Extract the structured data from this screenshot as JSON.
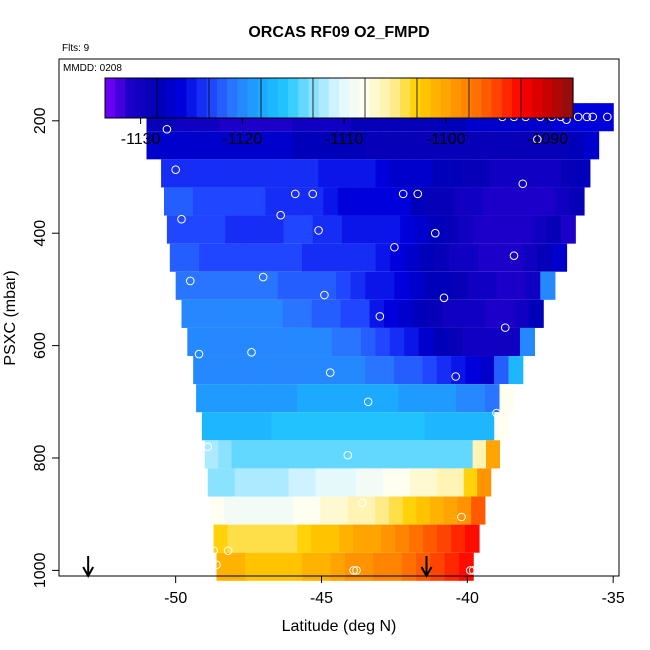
{
  "chart_data": {
    "type": "heatmap",
    "title": "ORCAS RF09 O2_FMPD",
    "note_flts": "Flts: 9",
    "note_mmdd": "MMDD: 0208",
    "xlabel": "Latitude (deg N)",
    "ylabel": "PSXC (mbar)",
    "xlim": [
      -54,
      -34.8
    ],
    "ylim": [
      1010,
      90
    ],
    "x_ticks": [
      -50,
      -45,
      -40,
      -35
    ],
    "x_tick_labels": [
      "-50",
      "-45",
      "-40",
      "-35"
    ],
    "y_ticks": [
      200,
      400,
      600,
      800,
      1000
    ],
    "y_tick_labels": [
      "200",
      "400",
      "600",
      "800",
      "1000"
    ],
    "colorbar": {
      "range": [
        -1133.5,
        -1087.5
      ],
      "ticks": [
        -1130,
        -1120,
        -1110,
        -1100,
        -1090
      ],
      "tick_labels": [
        "-1130",
        "-1120",
        "-1110",
        "-1100",
        "-1090"
      ],
      "palette": [
        "#7b00ff",
        "#1a00c8",
        "#0000b4",
        "#0000e0",
        "#1f3fff",
        "#2a7cff",
        "#1aa8ff",
        "#22c8ff",
        "#88e2ff",
        "#dff6ff",
        "#fffff0",
        "#fff0a0",
        "#ffd000",
        "#ffa800",
        "#ff8000",
        "#ff4800",
        "#ff0000",
        "#c80000",
        "#8b1010"
      ]
    },
    "bands": [
      {
        "p": 190,
        "x0": -51.0,
        "x1": -35.0,
        "v": [
          -1129,
          -1129,
          -1130,
          -1130,
          -1130,
          -1131,
          -1131,
          -1131,
          -1131,
          -1131,
          -1130,
          -1130,
          -1130,
          -1130,
          -1129,
          -1129,
          -1129,
          -1129,
          -1129,
          -1129,
          -1128,
          -1128,
          -1127,
          -1127,
          -1127,
          -1127,
          -1127,
          -1127,
          -1126,
          -1126,
          -1126,
          -1126
        ]
      },
      {
        "p": 240,
        "x0": -51.0,
        "x1": -35.5,
        "v": [
          -1127,
          -1127,
          -1127,
          -1127,
          -1127,
          -1127,
          -1127,
          -1127,
          -1127,
          -1127,
          -1128,
          -1128,
          -1128,
          -1128,
          -1128,
          -1129,
          -1129,
          -1129,
          -1129,
          -1129,
          -1129,
          -1129,
          -1129,
          -1129,
          -1129,
          -1129,
          -1129,
          -1129,
          -1129,
          -1128,
          -1127
        ]
      },
      {
        "p": 290,
        "x0": -50.5,
        "x1": -35.8,
        "v": [
          -1124,
          -1124,
          -1124,
          -1124,
          -1124,
          -1124,
          -1124,
          -1124,
          -1124,
          -1124,
          -1124,
          -1125,
          -1125,
          -1125,
          -1125,
          -1126,
          -1127,
          -1127,
          -1127,
          -1128,
          -1128,
          -1129,
          -1129,
          -1130,
          -1130,
          -1130,
          -1130,
          -1130,
          -1129,
          -1128
        ]
      },
      {
        "p": 340,
        "x0": -50.4,
        "x1": -36.0,
        "v": [
          -1122,
          -1122,
          -1123,
          -1123,
          -1123,
          -1123,
          -1123,
          -1124,
          -1124,
          -1124,
          -1124,
          -1125,
          -1126,
          -1126,
          -1126,
          -1126,
          -1126,
          -1128,
          -1129,
          -1129,
          -1130,
          -1130,
          -1131,
          -1131,
          -1131,
          -1131,
          -1131,
          -1130,
          -1129
        ]
      },
      {
        "p": 390,
        "x0": -50.3,
        "x1": -36.3,
        "v": [
          -1123,
          -1123,
          -1123,
          -1123,
          -1124,
          -1124,
          -1124,
          -1124,
          -1123,
          -1123,
          -1124,
          -1124,
          -1125,
          -1125,
          -1125,
          -1125,
          -1126,
          -1127,
          -1128,
          -1129,
          -1130,
          -1131,
          -1131,
          -1131,
          -1131,
          -1130,
          -1129,
          -1131
        ]
      },
      {
        "p": 440,
        "x0": -50.2,
        "x1": -36.6,
        "v": [
          -1122,
          -1122,
          -1123,
          -1123,
          -1123,
          -1123,
          -1123,
          -1123,
          -1123,
          -1124,
          -1124,
          -1124,
          -1124,
          -1124,
          -1125,
          -1126,
          -1127,
          -1128,
          -1129,
          -1130,
          -1130,
          -1131,
          -1131,
          -1131,
          -1130,
          -1129,
          -1127
        ]
      },
      {
        "p": 490,
        "x0": -50.0,
        "x1": -37.0,
        "v": [
          -1121,
          -1121,
          -1121,
          -1121,
          -1121,
          -1121,
          -1121,
          -1122,
          -1122,
          -1122,
          -1122,
          -1123,
          -1124,
          -1125,
          -1125,
          -1126,
          -1127,
          -1128,
          -1128,
          -1129,
          -1130,
          -1130,
          -1131,
          -1131,
          -1130,
          -1120
        ]
      },
      {
        "p": 540,
        "x0": -49.8,
        "x1": -37.4,
        "v": [
          -1120,
          -1120,
          -1120,
          -1120,
          -1120,
          -1120,
          -1120,
          -1121,
          -1121,
          -1122,
          -1122,
          -1123,
          -1123,
          -1125,
          -1126,
          -1127,
          -1128,
          -1129,
          -1130,
          -1130,
          -1130,
          -1131,
          -1131,
          -1130,
          -1128
        ]
      },
      {
        "p": 590,
        "x0": -49.6,
        "x1": -37.7,
        "v": [
          -1120,
          -1120,
          -1120,
          -1120,
          -1120,
          -1120,
          -1120,
          -1120,
          -1120,
          -1120,
          -1121,
          -1121,
          -1122,
          -1123,
          -1124,
          -1125,
          -1127,
          -1128,
          -1129,
          -1130,
          -1130,
          -1130,
          -1130,
          -1120
        ]
      },
      {
        "p": 640,
        "x0": -49.4,
        "x1": -38.1,
        "v": [
          -1120,
          -1120,
          -1120,
          -1120,
          -1120,
          -1120,
          -1120,
          -1120,
          -1120,
          -1120,
          -1120,
          -1120,
          -1121,
          -1121,
          -1122,
          -1122,
          -1123,
          -1124,
          -1125,
          -1126,
          -1127,
          -1122,
          -1117
        ]
      },
      {
        "p": 690,
        "x0": -49.3,
        "x1": -38.4,
        "v": [
          -1119,
          -1119,
          -1119,
          -1119,
          -1119,
          -1119,
          -1119,
          -1118,
          -1118,
          -1118,
          -1118,
          -1118,
          -1118,
          -1118,
          -1119,
          -1119,
          -1119,
          -1119,
          -1120,
          -1120,
          -1121,
          -1108
        ]
      },
      {
        "p": 740,
        "x0": -49.1,
        "x1": -38.6,
        "v": [
          -1117,
          -1117,
          -1117,
          -1117,
          -1117,
          -1116,
          -1116,
          -1116,
          -1116,
          -1116,
          -1116,
          -1116,
          -1116,
          -1116,
          -1116,
          -1116,
          -1117,
          -1117,
          -1117,
          -1117,
          -1117,
          -1108
        ]
      },
      {
        "p": 790,
        "x0": -49.0,
        "x1": -38.9,
        "v": [
          -1112,
          -1113,
          -1114,
          -1114,
          -1114,
          -1114,
          -1114,
          -1114,
          -1114,
          -1114,
          -1114,
          -1114,
          -1114,
          -1114,
          -1114,
          -1114,
          -1114,
          -1114,
          -1114,
          -1114,
          -1106,
          -1100
        ]
      },
      {
        "p": 840,
        "x0": -48.9,
        "x1": -39.2,
        "v": [
          -1113,
          -1113,
          -1112,
          -1112,
          -1112,
          -1112,
          -1111,
          -1111,
          -1110,
          -1110,
          -1110,
          -1109,
          -1109,
          -1108,
          -1108,
          -1107,
          -1107,
          -1106,
          -1106,
          -1103,
          -1099
        ]
      },
      {
        "p": 890,
        "x0": -48.8,
        "x1": -39.4,
        "v": [
          -1108,
          -1109,
          -1109,
          -1109,
          -1109,
          -1109,
          -1108,
          -1108,
          -1107,
          -1107,
          -1106,
          -1106,
          -1105,
          -1104,
          -1103,
          -1102,
          -1101,
          -1100,
          -1099,
          -1096
        ]
      },
      {
        "p": 940,
        "x0": -48.7,
        "x1": -39.6,
        "v": [
          -1103,
          -1104,
          -1104,
          -1104,
          -1104,
          -1104,
          -1103,
          -1102,
          -1102,
          -1101,
          -1100,
          -1100,
          -1099,
          -1098,
          -1097,
          -1096,
          -1095,
          -1094,
          -1093
        ]
      },
      {
        "p": 990,
        "x0": -48.6,
        "x1": -39.8,
        "v": [
          -1101,
          -1101,
          -1102,
          -1102,
          -1102,
          -1102,
          -1101,
          -1101,
          -1100,
          -1099,
          -1099,
          -1098,
          -1098,
          -1097,
          -1096,
          -1095,
          -1094,
          -1093
        ]
      }
    ],
    "points": [
      [
        -50.8,
        188
      ],
      [
        -50.3,
        215
      ],
      [
        -50.0,
        287
      ],
      [
        -49.8,
        375
      ],
      [
        -49.5,
        485
      ],
      [
        -49.2,
        615
      ],
      [
        -48.9,
        780
      ],
      [
        -48.7,
        965
      ],
      [
        -48.6,
        990
      ],
      [
        -48.2,
        965
      ],
      [
        -47.4,
        612
      ],
      [
        -47.0,
        478
      ],
      [
        -46.4,
        368
      ],
      [
        -45.9,
        330
      ],
      [
        -45.3,
        330
      ],
      [
        -45.1,
        395
      ],
      [
        -44.9,
        510
      ],
      [
        -44.7,
        648
      ],
      [
        -44.1,
        795
      ],
      [
        -43.9,
        1000
      ],
      [
        -43.8,
        1000
      ],
      [
        -43.6,
        880
      ],
      [
        -43.4,
        700
      ],
      [
        -43.0,
        548
      ],
      [
        -42.5,
        425
      ],
      [
        -42.2,
        330
      ],
      [
        -41.7,
        330
      ],
      [
        -41.1,
        400
      ],
      [
        -40.8,
        515
      ],
      [
        -40.4,
        655
      ],
      [
        -40.2,
        905
      ],
      [
        -39.9,
        1000
      ],
      [
        -39.8,
        1000
      ],
      [
        -39.0,
        720
      ],
      [
        -38.7,
        568
      ],
      [
        -38.4,
        440
      ],
      [
        -38.1,
        312
      ],
      [
        -37.6,
        233
      ],
      [
        -37.1,
        193
      ],
      [
        -36.8,
        193
      ],
      [
        -36.6,
        198
      ],
      [
        -36.2,
        193
      ],
      [
        -35.9,
        193
      ],
      [
        -35.7,
        193
      ],
      [
        -35.2,
        193
      ],
      [
        -38.8,
        193
      ],
      [
        -38.4,
        193
      ],
      [
        -38.0,
        193
      ],
      [
        -37.5,
        193
      ]
    ],
    "arrows": [
      {
        "x": -53.0
      },
      {
        "x": -41.4
      }
    ]
  }
}
